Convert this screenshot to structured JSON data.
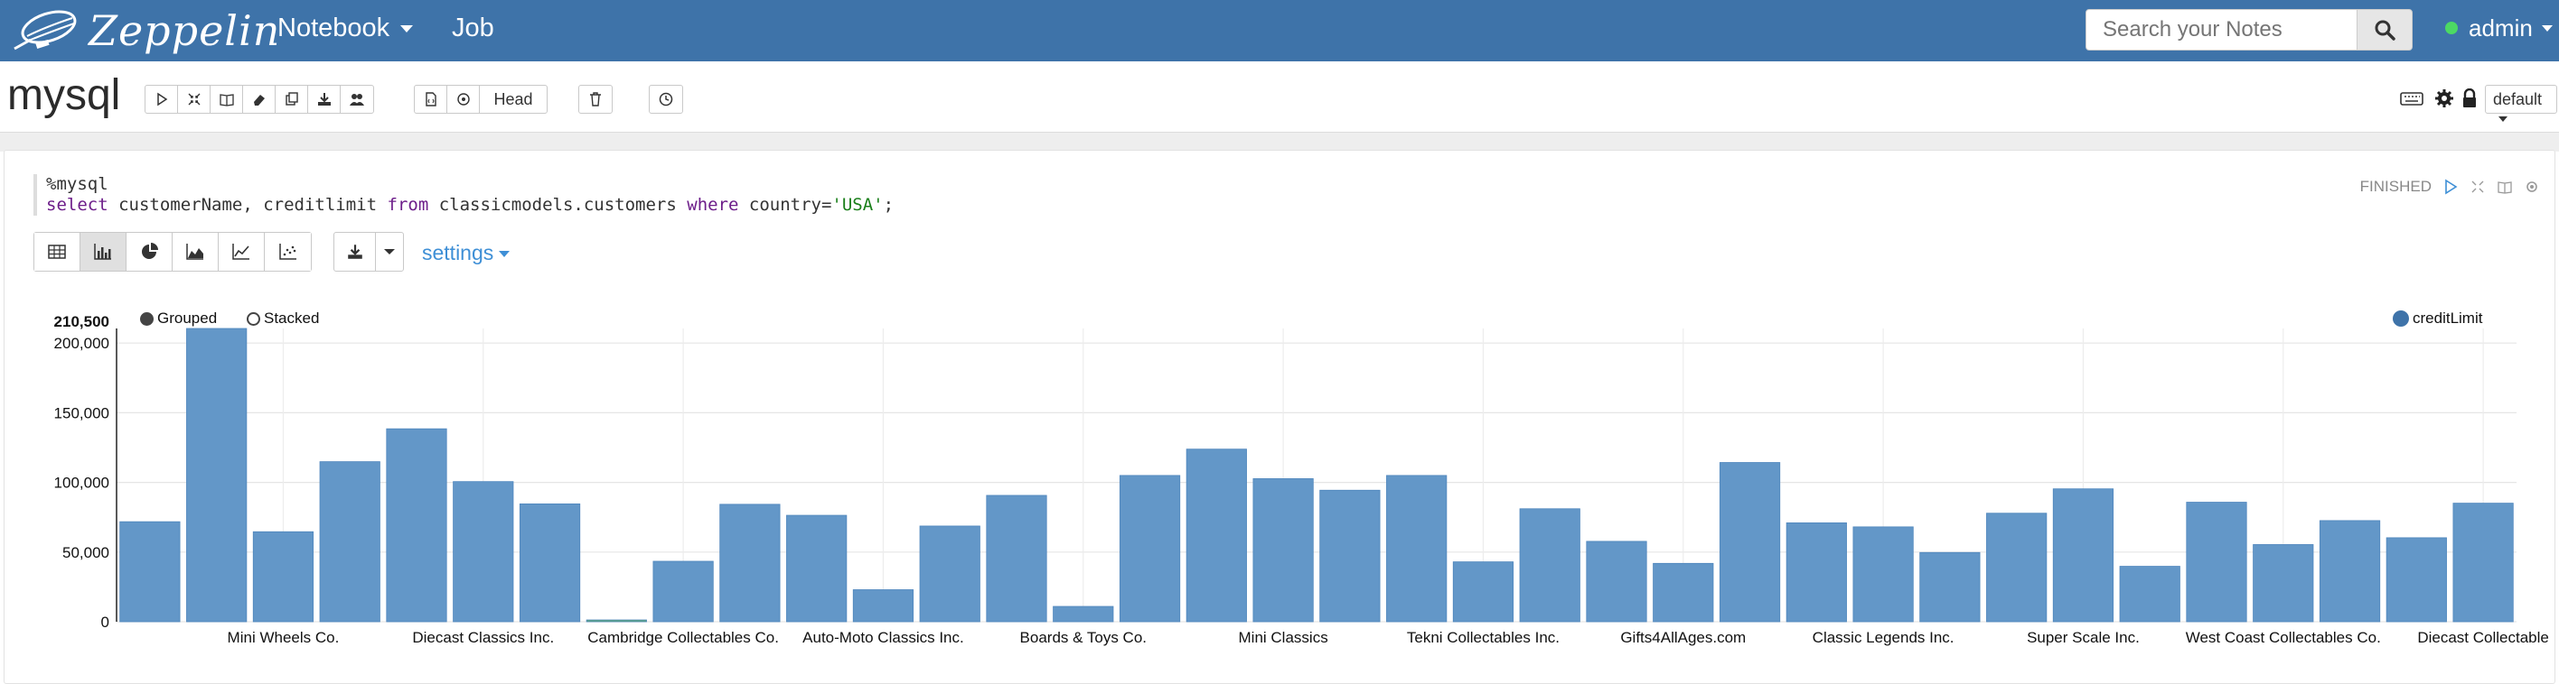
{
  "navbar": {
    "brand": "Zeppelin",
    "notebook_label": "Notebook",
    "job_label": "Job",
    "search_placeholder": "Search your Notes",
    "user": "admin"
  },
  "note": {
    "title": "mysql",
    "head_label": "Head",
    "interpreter_default": "default"
  },
  "paragraph": {
    "code_line1": "%mysql",
    "code_line2": {
      "kw1": "select",
      "t1": " customerName, creditlimit ",
      "kw2": "from",
      "t2": " classicmodels.customers ",
      "kw3": "where",
      "t3": " country=",
      "str": "'USA'",
      "t4": ";"
    },
    "status": "FINISHED",
    "settings_label": "settings"
  },
  "chart_options": {
    "grouped_label": "Grouped",
    "stacked_label": "Stacked",
    "grouped_selected": true
  },
  "colors": {
    "navbar": "#3e73a9",
    "bar": "#6397c8",
    "accent": "#3e8fd6"
  },
  "chart_data": {
    "type": "bar",
    "series": [
      {
        "name": "creditLimit",
        "values": [
          71800,
          210500,
          64600,
          114900,
          138500,
          100600,
          84600,
          0,
          43400,
          84300,
          76400,
          23000,
          68700,
          90700,
          11000,
          105000,
          123900,
          102700,
          94400,
          105000,
          43000,
          81100,
          57700,
          41900,
          114300,
          71000,
          68100,
          49700,
          77900,
          95400,
          39800,
          85800,
          55400,
          72600,
          60300,
          85100
        ]
      }
    ],
    "tick_labels": [
      {
        "index": 2,
        "label": "Mini Wheels Co."
      },
      {
        "index": 5,
        "label": "Diecast Classics Inc."
      },
      {
        "index": 8,
        "label": "Cambridge Collectables Co."
      },
      {
        "index": 11,
        "label": "Auto-Moto Classics Inc."
      },
      {
        "index": 14,
        "label": "Boards & Toys Co."
      },
      {
        "index": 17,
        "label": "Mini Classics"
      },
      {
        "index": 20,
        "label": "Tekni Collectables Inc."
      },
      {
        "index": 23,
        "label": "Gifts4AllAges.com"
      },
      {
        "index": 26,
        "label": "Classic Legends Inc."
      },
      {
        "index": 29,
        "label": "Super Scale Inc."
      },
      {
        "index": 32,
        "label": "West Coast Collectables Co."
      },
      {
        "index": 35,
        "label": "Diecast Collectable"
      }
    ],
    "y_ticks": [
      {
        "value": 0,
        "label": "0"
      },
      {
        "value": 50000,
        "label": "50,000"
      },
      {
        "value": 100000,
        "label": "100,000"
      },
      {
        "value": 150000,
        "label": "150,000"
      },
      {
        "value": 200000,
        "label": "200,000"
      },
      {
        "value": 210500,
        "label": "210,500"
      }
    ],
    "ylim": [
      0,
      210500
    ],
    "grid": true,
    "legend_position": "top-right"
  }
}
